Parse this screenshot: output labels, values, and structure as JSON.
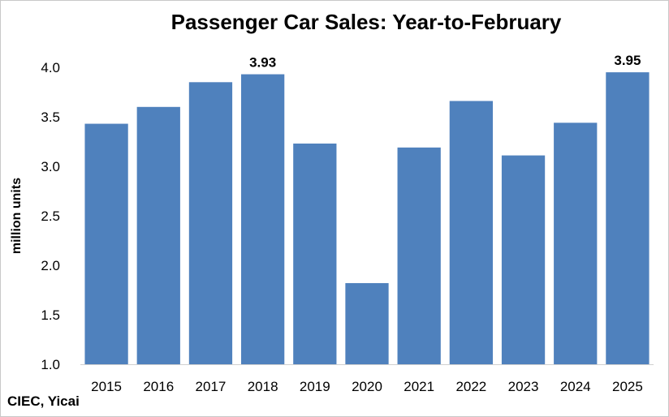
{
  "chart_data": {
    "type": "bar",
    "title": "Passenger Car Sales: Year-to-February",
    "ylabel": "million units",
    "xlabel": "",
    "categories": [
      "2015",
      "2016",
      "2017",
      "2018",
      "2019",
      "2020",
      "2021",
      "2022",
      "2023",
      "2024",
      "2025"
    ],
    "values": [
      3.43,
      3.6,
      3.85,
      3.93,
      3.23,
      1.82,
      3.19,
      3.66,
      3.11,
      3.44,
      3.95
    ],
    "data_labels": [
      {
        "category": "2018",
        "text": "3.93"
      },
      {
        "category": "2025",
        "text": "3.95"
      }
    ],
    "ylim": [
      1.0,
      4.0
    ],
    "yticks": [
      1.0,
      1.5,
      2.0,
      2.5,
      3.0,
      3.5,
      4.0
    ],
    "ytick_labels": [
      "1.0",
      "1.5",
      "2.0",
      "2.5",
      "3.0",
      "3.5",
      "4.0"
    ],
    "bar_color": "#4F81BD",
    "grid": false,
    "legend": "none"
  },
  "source": "CIEC, Yicai"
}
